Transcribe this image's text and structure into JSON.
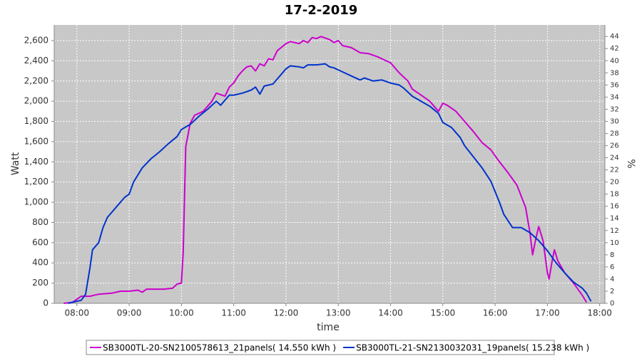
{
  "chart_data": {
    "type": "line",
    "title": "17-2-2019",
    "x_label": "time",
    "y_label": "Watt",
    "y2_label": "%",
    "xlim": [
      "07:34",
      "18:06"
    ],
    "xticks": [
      "08:00",
      "09:00",
      "10:00",
      "11:00",
      "12:00",
      "13:00",
      "14:00",
      "15:00",
      "16:00",
      "17:00",
      "18:00"
    ],
    "ylim": [
      0,
      2755
    ],
    "yticks": [
      0,
      200,
      400,
      600,
      800,
      {
        "value": 1000,
        "label": "1,000"
      },
      {
        "value": 1200,
        "label": "1,200"
      },
      {
        "value": 1400,
        "label": "1,400"
      },
      {
        "value": 1600,
        "label": "1,600"
      },
      {
        "value": 1800,
        "label": "1,800"
      },
      {
        "value": 2000,
        "label": "2,000"
      },
      {
        "value": 2200,
        "label": "2,200"
      },
      {
        "value": 2400,
        "label": "2,400"
      },
      {
        "value": 2600,
        "label": "2,600"
      }
    ],
    "y2lim": [
      0,
      45.9
    ],
    "y2ticks": [
      0,
      2,
      4,
      6,
      8,
      10,
      12,
      14,
      16,
      18,
      20,
      22,
      24,
      26,
      28,
      30,
      32,
      34,
      36,
      38,
      40,
      42,
      44
    ],
    "grid": true,
    "legend": "bottom",
    "series": [
      {
        "name": "SB3000TL-20-SN2100578613_21panels( 14.550 kWh )",
        "color": "#cc00cc",
        "x": [
          "07:45",
          "07:55",
          "08:05",
          "08:15",
          "08:25",
          "08:40",
          "08:50",
          "09:00",
          "09:10",
          "09:15",
          "09:20",
          "09:30",
          "09:40",
          "09:50",
          "09:55",
          "10:00",
          "10:02",
          "10:05",
          "10:10",
          "10:15",
          "10:25",
          "10:35",
          "10:40",
          "10:50",
          "10:55",
          "11:00",
          "11:05",
          "11:10",
          "11:15",
          "11:20",
          "11:25",
          "11:30",
          "11:35",
          "11:40",
          "11:45",
          "11:50",
          "12:00",
          "12:05",
          "12:10",
          "12:15",
          "12:20",
          "12:25",
          "12:30",
          "12:35",
          "12:40",
          "12:50",
          "12:55",
          "13:00",
          "13:05",
          "13:15",
          "13:25",
          "13:35",
          "13:45",
          "13:55",
          "14:00",
          "14:10",
          "14:20",
          "14:25",
          "14:35",
          "14:45",
          "14:55",
          "15:00",
          "15:05",
          "15:15",
          "15:25",
          "15:35",
          "15:45",
          "15:55",
          "16:05",
          "16:15",
          "16:25",
          "16:35",
          "16:40",
          "16:43",
          "16:47",
          "16:50",
          "16:55",
          "17:00",
          "17:02",
          "17:05",
          "17:08",
          "17:12",
          "17:20",
          "17:30",
          "17:40",
          "17:45"
        ],
        "values": [
          0,
          10,
          70,
          70,
          90,
          100,
          120,
          120,
          130,
          110,
          140,
          140,
          140,
          150,
          190,
          200,
          500,
          1550,
          1780,
          1860,
          1900,
          2000,
          2080,
          2050,
          2140,
          2180,
          2250,
          2300,
          2340,
          2350,
          2300,
          2370,
          2350,
          2420,
          2410,
          2500,
          2570,
          2590,
          2580,
          2570,
          2600,
          2580,
          2630,
          2620,
          2640,
          2610,
          2580,
          2600,
          2550,
          2530,
          2480,
          2470,
          2440,
          2400,
          2380,
          2280,
          2200,
          2120,
          2060,
          2000,
          1900,
          1980,
          1960,
          1900,
          1800,
          1700,
          1590,
          1520,
          1400,
          1290,
          1170,
          950,
          700,
          480,
          650,
          760,
          620,
          300,
          240,
          400,
          530,
          420,
          300,
          200,
          80,
          10
        ]
      },
      {
        "name": "SB3000TL-21-SN2130032031_19panels( 15.238 kWh )",
        "color": "#0033cc",
        "x": [
          "07:50",
          "08:00",
          "08:05",
          "08:10",
          "08:15",
          "08:18",
          "08:25",
          "08:30",
          "08:35",
          "08:45",
          "08:55",
          "09:00",
          "09:05",
          "09:15",
          "09:25",
          "09:35",
          "09:45",
          "09:55",
          "10:00",
          "10:10",
          "10:20",
          "10:30",
          "10:40",
          "10:45",
          "10:55",
          "11:00",
          "11:10",
          "11:20",
          "11:25",
          "11:30",
          "11:35",
          "11:45",
          "11:55",
          "12:00",
          "12:05",
          "12:15",
          "12:20",
          "12:25",
          "12:35",
          "12:45",
          "12:50",
          "12:55",
          "13:05",
          "13:15",
          "13:25",
          "13:30",
          "13:40",
          "13:50",
          "14:00",
          "14:10",
          "14:15",
          "14:25",
          "14:35",
          "14:45",
          "14:55",
          "15:00",
          "15:10",
          "15:20",
          "15:25",
          "15:35",
          "15:45",
          "15:55",
          "16:05",
          "16:10",
          "16:20",
          "16:30",
          "16:40",
          "16:50",
          "17:00",
          "17:10",
          "17:20",
          "17:30",
          "17:40",
          "17:45",
          "17:50"
        ],
        "values": [
          0,
          20,
          30,
          90,
          350,
          530,
          600,
          750,
          850,
          950,
          1050,
          1080,
          1200,
          1340,
          1430,
          1500,
          1580,
          1650,
          1720,
          1770,
          1850,
          1920,
          2000,
          1960,
          2060,
          2060,
          2080,
          2110,
          2140,
          2070,
          2150,
          2170,
          2270,
          2320,
          2350,
          2340,
          2330,
          2360,
          2360,
          2370,
          2340,
          2330,
          2290,
          2250,
          2210,
          2230,
          2200,
          2210,
          2180,
          2160,
          2130,
          2050,
          2000,
          1950,
          1880,
          1790,
          1740,
          1640,
          1560,
          1450,
          1340,
          1210,
          1000,
          880,
          750,
          750,
          700,
          620,
          520,
          400,
          300,
          210,
          150,
          100,
          20
        ]
      }
    ]
  }
}
